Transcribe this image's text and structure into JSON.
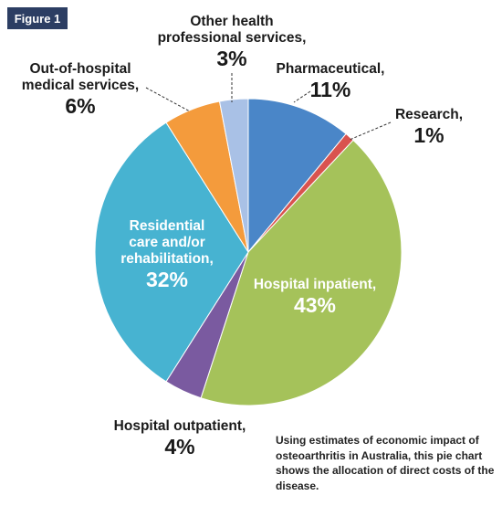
{
  "figure_label": "Figure 1",
  "caption": "Using estimates of economic impact of osteoarthritis in Australia, this pie chart shows the allocation of direct costs of the disease.",
  "chart_data": {
    "type": "pie",
    "unit": "%",
    "slices": [
      {
        "name": "Pharmaceutical,",
        "name_lines": [
          "Pharmaceutical,"
        ],
        "value": 11,
        "label": "11%",
        "color": "#4a86c8"
      },
      {
        "name": "Research,",
        "name_lines": [
          "Research,"
        ],
        "value": 1,
        "label": "1%",
        "color": "#d9534f"
      },
      {
        "name": "Hospital inpatient,",
        "name_lines": [
          "Hospital inpatient,"
        ],
        "value": 43,
        "label": "43%",
        "color": "#a5c25a"
      },
      {
        "name": "Hospital outpatient,",
        "name_lines": [
          "Hospital outpatient,"
        ],
        "value": 4,
        "label": "4%",
        "color": "#7a5aa0"
      },
      {
        "name": "Residential care and/or rehabilitation,",
        "name_lines": [
          "Residential",
          "care and/or",
          "rehabilitation,"
        ],
        "value": 32,
        "label": "32%",
        "color": "#47b3d1"
      },
      {
        "name": "Out-of-hospital medical services,",
        "name_lines": [
          "Out-of-hospital",
          "medical services,"
        ],
        "value": 6,
        "label": "6%",
        "color": "#f49b3c"
      },
      {
        "name": "Other health professional services,",
        "name_lines": [
          "Other health",
          "professional services,"
        ],
        "value": 3,
        "label": "3%",
        "color": "#a9c1e6"
      }
    ]
  }
}
